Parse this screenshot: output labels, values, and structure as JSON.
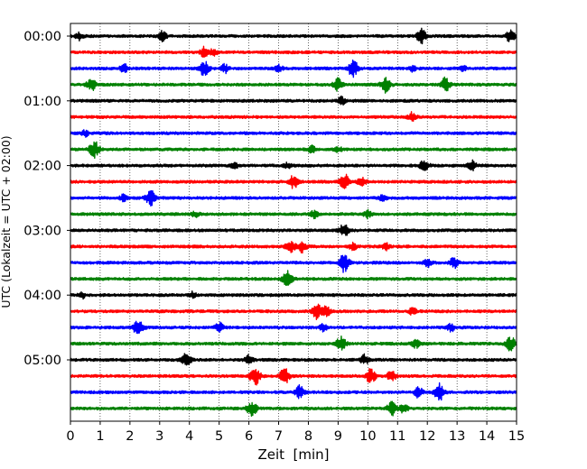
{
  "chart_data": {
    "type": "line",
    "title": "",
    "xlabel": "Zeit  [min]",
    "ylabel": "UTC (Lokalzeit = UTC + 02:00)",
    "xlim": [
      0,
      15
    ],
    "x_ticks": [
      "0",
      "1",
      "2",
      "3",
      "4",
      "5",
      "6",
      "7",
      "8",
      "9",
      "10",
      "11",
      "12",
      "13",
      "14",
      "15"
    ],
    "y_tick_labels": [
      "00:00",
      "01:00",
      "02:00",
      "03:00",
      "04:00",
      "05:00"
    ],
    "grid": "vertical dotted",
    "trace_interval_minutes": 15,
    "colors": [
      "#000000",
      "#ff0000",
      "#0000ff",
      "#008000"
    ],
    "series": [
      {
        "start": "00:00",
        "color": "#000000",
        "events": [
          [
            0.3,
            0.5
          ],
          [
            3.1,
            0.7
          ],
          [
            11.8,
            1.0
          ],
          [
            14.8,
            0.9
          ]
        ]
      },
      {
        "start": "00:15",
        "color": "#ff0000",
        "events": [
          [
            4.5,
            0.7
          ],
          [
            4.8,
            0.5
          ]
        ]
      },
      {
        "start": "00:30",
        "color": "#0000ff",
        "events": [
          [
            1.8,
            0.6
          ],
          [
            4.5,
            1.1
          ],
          [
            5.2,
            0.6
          ],
          [
            7.0,
            0.5
          ],
          [
            9.5,
            1.3
          ],
          [
            11.5,
            0.4
          ],
          [
            13.2,
            0.4
          ]
        ]
      },
      {
        "start": "00:45",
        "color": "#008000",
        "events": [
          [
            0.7,
            0.9
          ],
          [
            9.0,
            1.0
          ],
          [
            10.6,
            1.1
          ],
          [
            12.6,
            1.0
          ]
        ]
      },
      {
        "start": "01:00",
        "color": "#000000",
        "events": [
          [
            9.1,
            0.6
          ]
        ]
      },
      {
        "start": "01:15",
        "color": "#ff0000",
        "events": [
          [
            11.5,
            0.7
          ]
        ]
      },
      {
        "start": "01:30",
        "color": "#0000ff",
        "events": [
          [
            0.5,
            0.4
          ]
        ]
      },
      {
        "start": "01:45",
        "color": "#008000",
        "events": [
          [
            0.8,
            1.2
          ],
          [
            8.1,
            0.5
          ],
          [
            9.0,
            0.4
          ]
        ]
      },
      {
        "start": "02:00",
        "color": "#000000",
        "events": [
          [
            5.5,
            0.5
          ],
          [
            7.3,
            0.4
          ],
          [
            11.9,
            0.9
          ],
          [
            13.5,
            0.7
          ]
        ]
      },
      {
        "start": "02:15",
        "color": "#ff0000",
        "events": [
          [
            7.5,
            0.9
          ],
          [
            9.2,
            1.2
          ],
          [
            9.8,
            0.7
          ]
        ]
      },
      {
        "start": "02:30",
        "color": "#0000ff",
        "events": [
          [
            1.8,
            0.5
          ],
          [
            2.7,
            1.1
          ],
          [
            10.5,
            0.4
          ]
        ]
      },
      {
        "start": "02:45",
        "color": "#008000",
        "events": [
          [
            4.2,
            0.4
          ],
          [
            8.2,
            0.5
          ],
          [
            10.0,
            0.5
          ]
        ]
      },
      {
        "start": "03:00",
        "color": "#000000",
        "events": [
          [
            9.2,
            1.0
          ]
        ]
      },
      {
        "start": "03:15",
        "color": "#ff0000",
        "events": [
          [
            7.4,
            1.0
          ],
          [
            7.8,
            0.8
          ],
          [
            9.5,
            0.5
          ],
          [
            10.6,
            0.5
          ]
        ]
      },
      {
        "start": "03:30",
        "color": "#0000ff",
        "events": [
          [
            9.2,
            1.3
          ],
          [
            12.0,
            0.6
          ],
          [
            12.9,
            0.8
          ]
        ]
      },
      {
        "start": "03:45",
        "color": "#008000",
        "events": [
          [
            7.3,
            1.2
          ]
        ]
      },
      {
        "start": "04:00",
        "color": "#000000",
        "events": [
          [
            0.4,
            0.4
          ],
          [
            4.1,
            0.4
          ]
        ]
      },
      {
        "start": "04:15",
        "color": "#ff0000",
        "events": [
          [
            8.3,
            1.1
          ],
          [
            8.6,
            0.8
          ],
          [
            11.5,
            0.5
          ]
        ]
      },
      {
        "start": "04:30",
        "color": "#0000ff",
        "events": [
          [
            2.3,
            1.3
          ],
          [
            5.0,
            0.7
          ],
          [
            8.5,
            0.5
          ],
          [
            12.8,
            0.6
          ]
        ]
      },
      {
        "start": "04:45",
        "color": "#008000",
        "events": [
          [
            9.1,
            1.1
          ],
          [
            11.6,
            0.6
          ],
          [
            14.8,
            1.0
          ]
        ]
      },
      {
        "start": "05:00",
        "color": "#000000",
        "events": [
          [
            3.9,
            0.9
          ],
          [
            6.0,
            0.6
          ],
          [
            9.9,
            0.7
          ]
        ]
      },
      {
        "start": "05:15",
        "color": "#ff0000",
        "events": [
          [
            6.2,
            1.4
          ],
          [
            7.2,
            1.2
          ],
          [
            10.1,
            1.1
          ],
          [
            10.8,
            0.8
          ]
        ]
      },
      {
        "start": "05:30",
        "color": "#0000ff",
        "events": [
          [
            7.7,
            0.9
          ],
          [
            11.7,
            0.8
          ],
          [
            12.4,
            1.2
          ]
        ]
      },
      {
        "start": "05:45",
        "color": "#008000",
        "events": [
          [
            6.1,
            1.1
          ],
          [
            10.8,
            1.0
          ],
          [
            11.2,
            0.7
          ]
        ]
      }
    ]
  }
}
